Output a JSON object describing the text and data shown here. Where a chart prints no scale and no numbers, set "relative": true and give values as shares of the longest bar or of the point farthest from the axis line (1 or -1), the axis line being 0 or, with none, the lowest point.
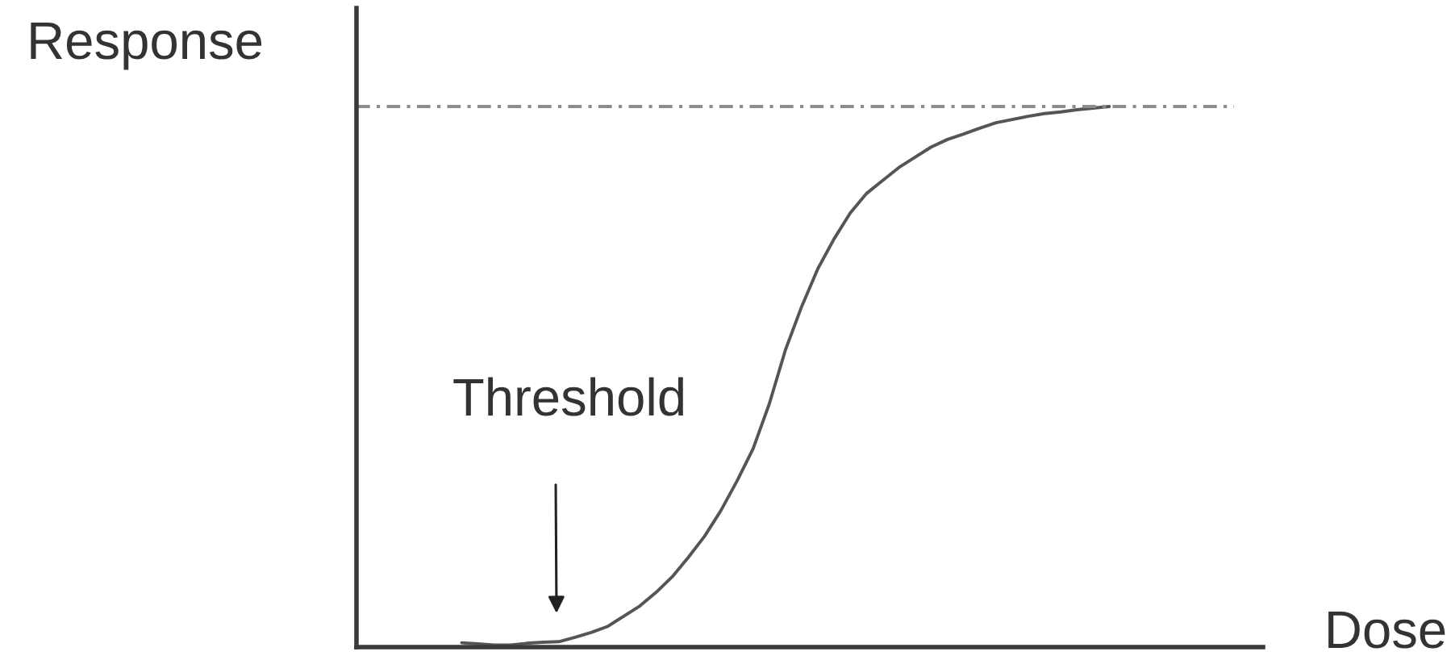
{
  "chart_data": {
    "type": "line",
    "relative": true,
    "xlabel": "Dose",
    "ylabel": "Response",
    "annotations": [
      "Threshold"
    ],
    "line_style": "solid",
    "categories": [
      null,
      null,
      null,
      null,
      null,
      null,
      null,
      null,
      null,
      null,
      null,
      null,
      null,
      null,
      null,
      null,
      null,
      null,
      null,
      null,
      null,
      null,
      null,
      null,
      null,
      null,
      null,
      null,
      null,
      null,
      null,
      null,
      null,
      null,
      null,
      null,
      null,
      null,
      null,
      null,
      null,
      null,
      null,
      null,
      null,
      null,
      null,
      null,
      null,
      null,
      null,
      null,
      null,
      null,
      null,
      null
    ],
    "series": [
      {
        "color": "#555555",
        "values": [
          null,
          null,
          null,
          null,
          null,
          null,
          0.008,
          0.006,
          0.004,
          0.004,
          0.007,
          0.009,
          0.01,
          0.018,
          0.027,
          0.038,
          0.057,
          0.076,
          0.101,
          0.13,
          0.166,
          0.205,
          0.252,
          0.307,
          0.367,
          0.45,
          0.55,
          0.63,
          0.7,
          0.755,
          0.803,
          0.839,
          0.863,
          0.887,
          0.906,
          0.925,
          0.939,
          0.949,
          0.96,
          0.97,
          0.976,
          0.982,
          0.987,
          0.99,
          0.994,
          0.997,
          1.0,
          null,
          null,
          null,
          null,
          null,
          null,
          null,
          null,
          null
        ]
      }
    ],
    "ref_lines": [
      {
        "axis": "y",
        "value": 1,
        "color": "#8c8c8c",
        "line_style": "dashdot"
      }
    ]
  }
}
